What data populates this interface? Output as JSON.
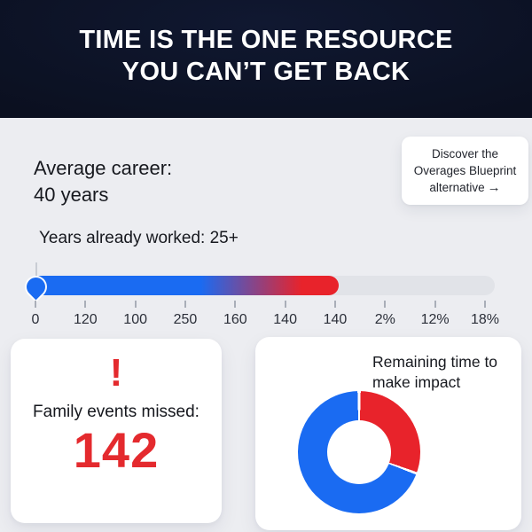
{
  "colors": {
    "header_bg": "#0b1020",
    "page_bg": "#ecedf1",
    "accent_blue": "#1a6bf2",
    "accent_red": "#e8232b",
    "value_red": "#e42a2e",
    "track_gray": "#e1e3e8",
    "text_dark": "#17191f"
  },
  "header": {
    "title_lines": [
      "TIME IS THE ONE RESOURCE",
      "YOU CAN’T GET BACK"
    ]
  },
  "career": {
    "line1": "Average career:",
    "line2": "40 years"
  },
  "cta": {
    "line1": "Discover the",
    "line2": "Overages Blueprint",
    "line3": "alternative",
    "arrow": "→"
  },
  "slider": {
    "label": "Years already worked: 25+",
    "ticks": [
      "0",
      "120",
      "100",
      "250",
      "160",
      "140",
      "140",
      "2%",
      "12%",
      "18%"
    ],
    "fill_percent": 66.4
  },
  "family_card": {
    "alert": "!",
    "label": "Family events missed:",
    "value": "142"
  },
  "impact_card": {
    "title": "Remaining time to make impact"
  },
  "chart_data": [
    {
      "type": "bar",
      "subtype": "progress-gauge",
      "title": "Years already worked: 25+",
      "tick_labels": [
        "0",
        "120",
        "100",
        "250",
        "160",
        "140",
        "140",
        "2%",
        "12%",
        "18%"
      ],
      "fill_fraction": 0.664,
      "fill_gradient": [
        "#1a6bf2",
        "#e8232b"
      ],
      "track_color": "#e1e3e8",
      "marker": "blue-pin-at-0"
    },
    {
      "type": "pie",
      "donut": true,
      "title": "Remaining time to make impact",
      "slices": [
        {
          "name": "time-elapsed",
          "color": "#e8232b",
          "percent": 30.5
        },
        {
          "name": "time-remaining",
          "color": "#1a6bf2",
          "percent": 69.5
        }
      ],
      "start_angle_deg": 0,
      "red_arc_deg": 110,
      "legend": "none"
    }
  ]
}
